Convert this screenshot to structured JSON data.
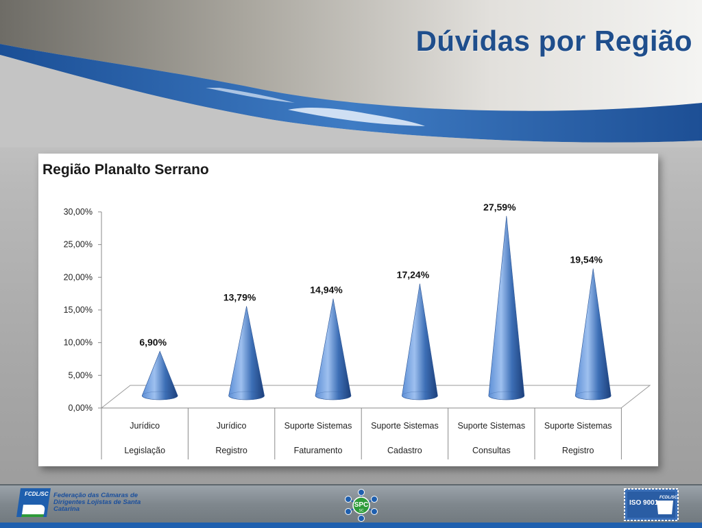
{
  "slide": {
    "title": "Dúvidas por Região"
  },
  "chart_data": {
    "type": "bar",
    "shape": "cone-3d",
    "title": "Região Planalto Serrano",
    "xlabel": "",
    "ylabel": "",
    "ylim": [
      0,
      30
    ],
    "yticks": [
      "0,00%",
      "5,00%",
      "10,00%",
      "15,00%",
      "20,00%",
      "25,00%",
      "30,00%"
    ],
    "categories": [
      [
        "Jurídico",
        "Legislação"
      ],
      [
        "Jurídico",
        "Registro"
      ],
      [
        "Suporte Sistemas",
        "Faturamento"
      ],
      [
        "Suporte Sistemas",
        "Cadastro"
      ],
      [
        "Suporte Sistemas",
        "Consultas"
      ],
      [
        "Suporte Sistemas",
        "Registro"
      ]
    ],
    "values": [
      6.9,
      13.79,
      14.94,
      17.24,
      27.59,
      19.54
    ],
    "data_labels": [
      "6,90%",
      "13,79%",
      "14,94%",
      "17,24%",
      "27,59%",
      "19,54%"
    ],
    "grid": false,
    "legend": "none",
    "colors": {
      "cone": "#3d6fb6",
      "cone_light": "#9ec0ef",
      "cone_dark": "#1c3f7a"
    }
  },
  "footer": {
    "fcdl_logo_text": "FCDL/SC",
    "fcdl_name": "Federação das Câmaras de Dirigentes Lojistas de Santa Catarina",
    "spc_logo_text": "SPC",
    "spc_logo_subtext": "SC",
    "iso_text": "ISO 9001",
    "iso_brand": "FCDL/SC"
  }
}
